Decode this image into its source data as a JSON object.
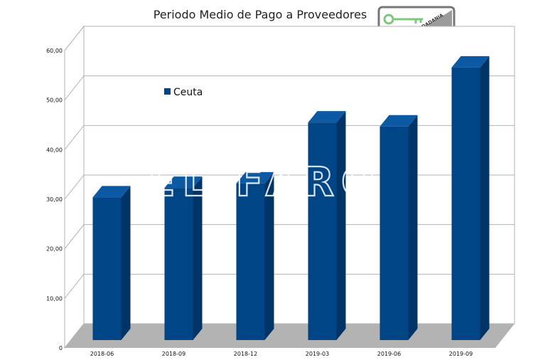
{
  "chart_data": {
    "type": "bar",
    "title": "Periodo Medio de Pago a Proveedores",
    "categories": [
      "2018-06",
      "2018-09",
      "2018-12",
      "2019-03",
      "2019-06",
      "2019-09"
    ],
    "series": [
      {
        "name": "Ceuta",
        "color": "#004586",
        "values": [
          28.8,
          30.7,
          31.6,
          43.9,
          43.1,
          55.0
        ]
      }
    ],
    "ylim": [
      0,
      60
    ],
    "y_ticks": [
      "0",
      "10,00",
      "20,00",
      "30,00",
      "40,00",
      "50,00",
      "60,00"
    ],
    "xlabel": "",
    "ylabel": "",
    "grid": true,
    "legend_position": "upper-left-inside",
    "style": "3d-bars"
  },
  "watermark": {
    "text": "EL FARO"
  },
  "logo": {
    "text": "DIGNIDAD Y CIUDADANIA",
    "accent": "#7ec87e"
  }
}
